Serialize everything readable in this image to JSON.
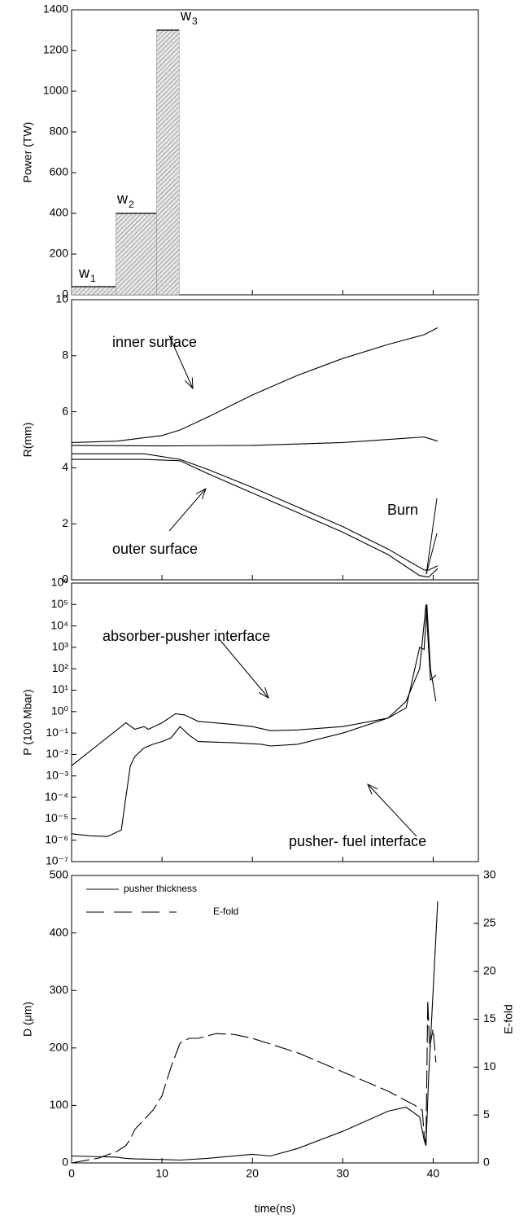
{
  "chart_data": [
    {
      "type": "histogram",
      "ylabel": "Power (TW)",
      "xlim": [
        0,
        45
      ],
      "ylim": [
        0,
        1400
      ],
      "yticks": [
        0,
        200,
        400,
        600,
        800,
        1000,
        1200,
        1400
      ],
      "bins": [
        0,
        4.9,
        9.4,
        11.9
      ],
      "values": [
        40,
        400,
        1300
      ],
      "color": "#888888",
      "annotations": [
        {
          "text": "w",
          "sub": "1"
        },
        {
          "text": "w",
          "sub": "2"
        },
        {
          "text": "w",
          "sub": "3"
        }
      ]
    },
    {
      "type": "line",
      "ylabel": "R(mm)",
      "xlim": [
        0,
        45
      ],
      "ylim": [
        0,
        10
      ],
      "yticks": [
        0,
        2,
        4,
        6,
        8,
        10
      ],
      "series": [
        {
          "color": "#000000",
          "x": [
            0,
            5,
            10,
            12,
            15,
            20,
            25,
            30,
            35,
            39,
            40.5
          ],
          "values": [
            4.9,
            4.95,
            5.15,
            5.35,
            5.8,
            6.6,
            7.3,
            7.9,
            8.4,
            8.75,
            9.0
          ]
        },
        {
          "color": "#000000",
          "x": [
            0,
            10,
            20,
            30,
            39,
            40.5
          ],
          "values": [
            4.8,
            4.78,
            4.8,
            4.9,
            5.1,
            4.95
          ]
        },
        {
          "color": "#000000",
          "x": [
            0,
            8,
            12,
            15,
            20,
            25,
            30,
            35,
            39,
            39.5,
            40.5
          ],
          "values": [
            4.5,
            4.5,
            4.3,
            3.95,
            3.3,
            2.6,
            1.9,
            1.1,
            0.35,
            0.35,
            0.5
          ]
        },
        {
          "color": "#000000",
          "x": [
            0,
            8,
            12,
            15,
            20,
            25,
            30,
            35,
            38.5,
            39.5,
            40.5
          ],
          "values": [
            4.3,
            4.3,
            4.25,
            3.8,
            3.1,
            2.4,
            1.7,
            0.9,
            0.15,
            0.1,
            0.4
          ]
        }
      ],
      "annotations": [
        {
          "text": "inner surface"
        },
        {
          "text": "outer surface"
        },
        {
          "text": "Burn"
        }
      ]
    },
    {
      "type": "line",
      "ylabel": "P (100 Mbar)",
      "log_y": true,
      "xlim": [
        0,
        45
      ],
      "ylim": [
        1e-07,
        1000000.0
      ],
      "yticks": [
        {
          "value": 1e-07,
          "label": "10⁻⁷"
        },
        {
          "value": 1e-06,
          "label": "10⁻⁶"
        },
        {
          "value": 1e-05,
          "label": "10⁻⁵"
        },
        {
          "value": 0.0001,
          "label": "10⁻⁴"
        },
        {
          "value": 0.001,
          "label": "10⁻³"
        },
        {
          "value": 0.01,
          "label": "10⁻²"
        },
        {
          "value": 0.1,
          "label": "10⁻¹"
        },
        {
          "value": 1,
          "label": "10⁰"
        },
        {
          "value": 10,
          "label": "10¹"
        },
        {
          "value": 100,
          "label": "10²"
        },
        {
          "value": 1000,
          "label": "10³"
        },
        {
          "value": 10000,
          "label": "10⁴"
        },
        {
          "value": 100000,
          "label": "10⁵"
        },
        {
          "value": 1000000,
          "label": "10⁶"
        }
      ],
      "series": [
        {
          "color": "#000000",
          "x": [
            0,
            6,
            7,
            8,
            8.5,
            10,
            11.5,
            12.5,
            14,
            18,
            20,
            22,
            25,
            30,
            35,
            37,
            38.5,
            39,
            39.3,
            39.7,
            40.3
          ],
          "values": [
            0.003,
            0.3,
            0.15,
            0.2,
            0.15,
            0.3,
            0.8,
            0.7,
            0.35,
            0.25,
            0.2,
            0.13,
            0.14,
            0.2,
            0.5,
            1.5,
            1000,
            800,
            100000,
            100,
            3
          ]
        },
        {
          "color": "#000000",
          "x": [
            0,
            2,
            4,
            5.5,
            6,
            6.5,
            7,
            8,
            9,
            10,
            11,
            12,
            13,
            14,
            18,
            21,
            22,
            25,
            30,
            35,
            37,
            38.5,
            39.2,
            39.7,
            40.3
          ],
          "values": [
            2e-06,
            1.6e-06,
            1.5e-06,
            3e-06,
            0.0001,
            0.003,
            0.008,
            0.02,
            0.03,
            0.04,
            0.06,
            0.2,
            0.08,
            0.04,
            0.035,
            0.03,
            0.025,
            0.03,
            0.1,
            0.5,
            3,
            100,
            100000,
            30,
            50
          ]
        }
      ],
      "annotations": [
        {
          "text": "absorber-pusher interface"
        },
        {
          "text": "pusher- fuel interface"
        }
      ]
    },
    {
      "type": "line",
      "ylabel": "D (μm)",
      "y2label": "E-fold",
      "xlabel": "time(ns)",
      "xlim": [
        0,
        45
      ],
      "xticks": [
        0,
        10,
        20,
        30,
        40
      ],
      "ylim": [
        0,
        500
      ],
      "yticks": [
        0,
        100,
        200,
        300,
        400,
        500
      ],
      "y2lim": [
        0,
        30
      ],
      "y2ticks": [
        0,
        5,
        10,
        15,
        20,
        25,
        30
      ],
      "series": [
        {
          "name": "pusher thickness",
          "color": "#000000",
          "dash": false,
          "x": [
            0,
            5,
            6,
            7,
            10,
            12,
            15,
            20,
            22,
            25,
            30,
            35,
            37,
            38.5,
            39,
            39.2,
            39.5,
            40,
            40.5
          ],
          "values": [
            12,
            10,
            8,
            7,
            6,
            5,
            8,
            15,
            12,
            25,
            55,
            90,
            97,
            80,
            40,
            30,
            150,
            300,
            455
          ]
        },
        {
          "name": "E-fold",
          "color": "#000000",
          "dash": true,
          "axis": "y2",
          "x": [
            0,
            3,
            5,
            6,
            6.5,
            7,
            8,
            9,
            10,
            11,
            12,
            13,
            14,
            16,
            18,
            20,
            25,
            30,
            35,
            38,
            38.8,
            39,
            39.2,
            39.4,
            39.6,
            40,
            40.3
          ],
          "values": [
            0,
            0.5,
            1.2,
            1.8,
            2.5,
            3.5,
            4.5,
            5.5,
            7,
            10,
            12.5,
            13,
            13,
            13.5,
            13.4,
            13,
            11.5,
            9.5,
            7.5,
            6,
            5.5,
            3,
            2,
            17,
            12,
            14,
            10.5
          ]
        }
      ]
    }
  ]
}
